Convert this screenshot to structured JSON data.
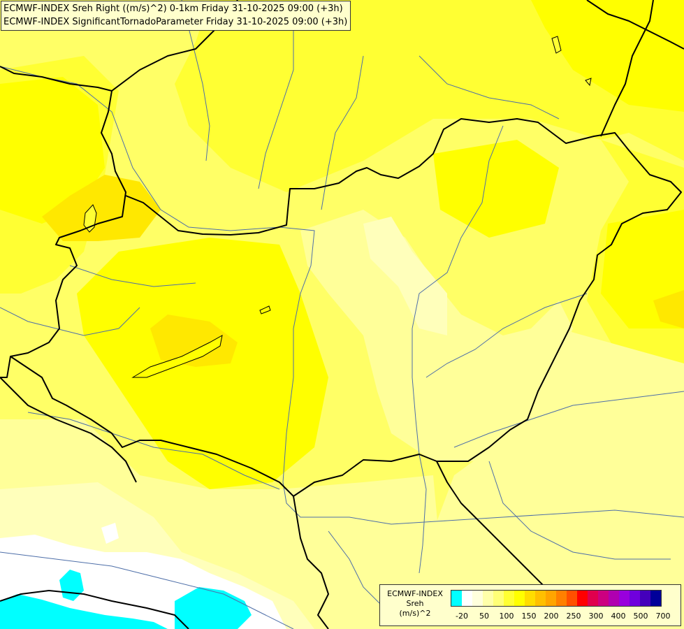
{
  "header": {
    "line1": "ECMWF-INDEX Sreh Right ((m/s)^2) 0-1km Friday 31-10-2025 09:00 (+3h)",
    "line2": "ECMWF-INDEX SignificantTornadoParameter Friday 31-10-2025 09:00 (+3h)"
  },
  "legend": {
    "title": "ECMWF-INDEX",
    "variable": "Sreh",
    "unit": "(m/s)^2",
    "colors": [
      "#00ffff",
      "#ffffff",
      "#ffffdd",
      "#ffffaa",
      "#ffff77",
      "#ffff33",
      "#ffff00",
      "#ffdd00",
      "#ffc000",
      "#ffa500",
      "#ff8000",
      "#ff5000",
      "#ff0000",
      "#e0004d",
      "#cc0080",
      "#b000b0",
      "#9900dd",
      "#7000dd",
      "#4400bb",
      "#000099"
    ],
    "ticks": [
      "-20",
      "50",
      "100",
      "150",
      "200",
      "250",
      "300",
      "400",
      "500",
      "700"
    ]
  },
  "fill_colors": {
    "pale": "#ffff99",
    "cream": "#ffffbb",
    "light": "#ffff66",
    "mid": "#ffff00",
    "strong": "#ffe800",
    "orange": "#ffdd00",
    "white": "#ffffff",
    "cyan": "#00ffff",
    "border": "#000000",
    "river": "#4d6ea8"
  }
}
